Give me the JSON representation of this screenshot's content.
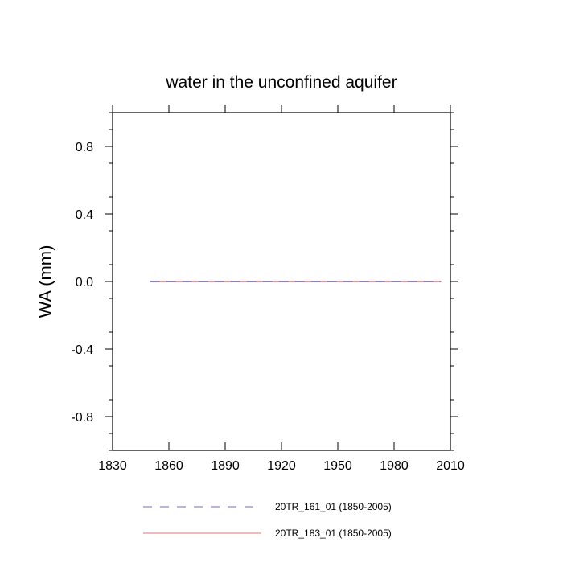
{
  "chart_data": {
    "type": "line",
    "title": "water in the unconfined aquifer",
    "xlabel": "",
    "ylabel": "WA  (mm)",
    "xlim": [
      1830,
      2010
    ],
    "ylim": [
      -1.0,
      1.0
    ],
    "xticks": [
      1830,
      1860,
      1890,
      1920,
      1950,
      1980,
      2010
    ],
    "yticks": [
      0.8,
      0.4,
      0.0,
      -0.4,
      -0.8
    ],
    "x_tick_labels": [
      "1830",
      "1860",
      "1890",
      "1920",
      "1950",
      "1980",
      "2010"
    ],
    "y_tick_labels": [
      "0.8",
      "0.4",
      "0.0",
      "-0.4",
      "-0.8"
    ],
    "grid": false,
    "legend_position": "bottom",
    "series": [
      {
        "name": "20TR_161_01 (1850-2005)",
        "color": "#6b6bd6",
        "dash": "dashed",
        "x": [
          1850,
          2005
        ],
        "y": [
          0.0,
          0.0
        ]
      },
      {
        "name": "20TR_183_01 (1850-2005)",
        "color": "#e87070",
        "dash": "solid",
        "x": [
          1850,
          2005
        ],
        "y": [
          0.0,
          0.0
        ]
      }
    ]
  }
}
